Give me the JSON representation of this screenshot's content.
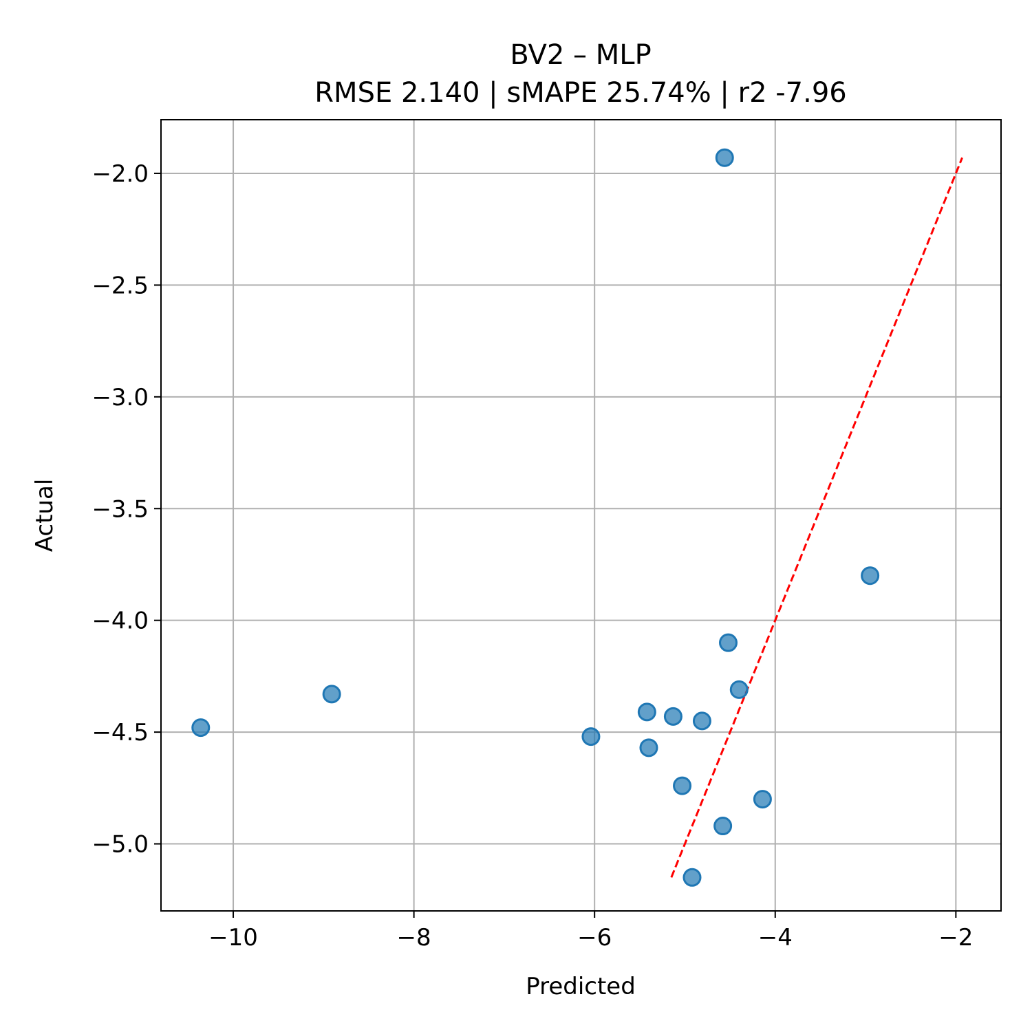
{
  "chart_data": {
    "type": "scatter",
    "title": "BV2 – MLP",
    "subtitle": "RMSE 2.140 | sMAPE 25.74%  | r2 -7.96",
    "xlabel": "Predicted",
    "ylabel": "Actual",
    "xlim": [
      -10.8,
      -1.5
    ],
    "ylim": [
      -5.3,
      -1.76
    ],
    "grid": true,
    "x_ticks": [
      -10,
      -8,
      -6,
      -4,
      -2
    ],
    "x_tick_labels": [
      "−10",
      "−8",
      "−6",
      "−4",
      "−2"
    ],
    "y_ticks": [
      -2.0,
      -2.5,
      -3.0,
      -3.5,
      -4.0,
      -4.5,
      -5.0
    ],
    "y_tick_labels": [
      "−2.0",
      "−2.5",
      "−3.0",
      "−3.5",
      "−4.0",
      "−4.5",
      "−5.0"
    ],
    "points": [
      {
        "x": -4.56,
        "y": -1.93
      },
      {
        "x": -2.95,
        "y": -3.8
      },
      {
        "x": -4.52,
        "y": -4.1
      },
      {
        "x": -4.4,
        "y": -4.31
      },
      {
        "x": -8.91,
        "y": -4.33
      },
      {
        "x": -10.36,
        "y": -4.48
      },
      {
        "x": -5.42,
        "y": -4.41
      },
      {
        "x": -5.13,
        "y": -4.43
      },
      {
        "x": -4.81,
        "y": -4.45
      },
      {
        "x": -6.04,
        "y": -4.52
      },
      {
        "x": -5.4,
        "y": -4.57
      },
      {
        "x": -5.03,
        "y": -4.74
      },
      {
        "x": -4.14,
        "y": -4.8
      },
      {
        "x": -4.58,
        "y": -4.92
      },
      {
        "x": -4.92,
        "y": -5.15
      }
    ],
    "reference_line": {
      "x": [
        -5.15,
        -1.93
      ],
      "y": [
        -5.15,
        -1.93
      ],
      "style": "dashed",
      "color": "#ff0000"
    },
    "marker_color": "#1f77b4",
    "grid_color": "#b0b0b0"
  }
}
